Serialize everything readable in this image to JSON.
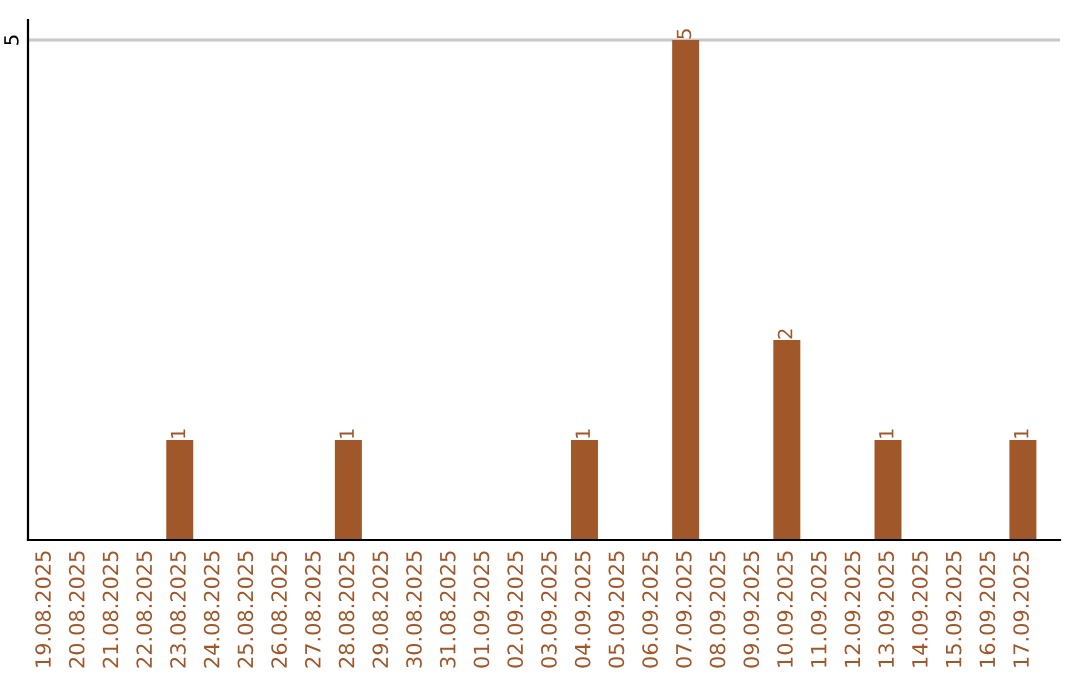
{
  "chart_data": {
    "type": "bar",
    "categories": [
      "19.08.2025",
      "20.08.2025",
      "21.08.2025",
      "22.08.2025",
      "23.08.2025",
      "24.08.2025",
      "25.08.2025",
      "26.08.2025",
      "27.08.2025",
      "28.08.2025",
      "29.08.2025",
      "30.08.2025",
      "31.08.2025",
      "01.09.2025",
      "02.09.2025",
      "03.09.2025",
      "04.09.2025",
      "05.09.2025",
      "06.09.2025",
      "07.09.2025",
      "08.09.2025",
      "09.09.2025",
      "10.09.2025",
      "11.09.2025",
      "12.09.2025",
      "13.09.2025",
      "14.09.2025",
      "15.09.2025",
      "16.09.2025",
      "17.09.2025"
    ],
    "values": [
      0,
      0,
      0,
      0,
      1,
      0,
      0,
      0,
      0,
      1,
      0,
      0,
      0,
      0,
      0,
      0,
      1,
      0,
      0,
      5,
      0,
      0,
      2,
      0,
      0,
      1,
      0,
      0,
      0,
      1
    ],
    "value_labels": [
      null,
      null,
      null,
      null,
      "1",
      null,
      null,
      null,
      null,
      "1",
      null,
      null,
      null,
      null,
      null,
      null,
      "1",
      null,
      null,
      "5",
      null,
      null,
      "2",
      null,
      null,
      "1",
      null,
      null,
      null,
      "1"
    ],
    "color": "#a0572a",
    "ylim": [
      0,
      5.2
    ],
    "yticks": [
      5
    ],
    "grid": "y"
  }
}
